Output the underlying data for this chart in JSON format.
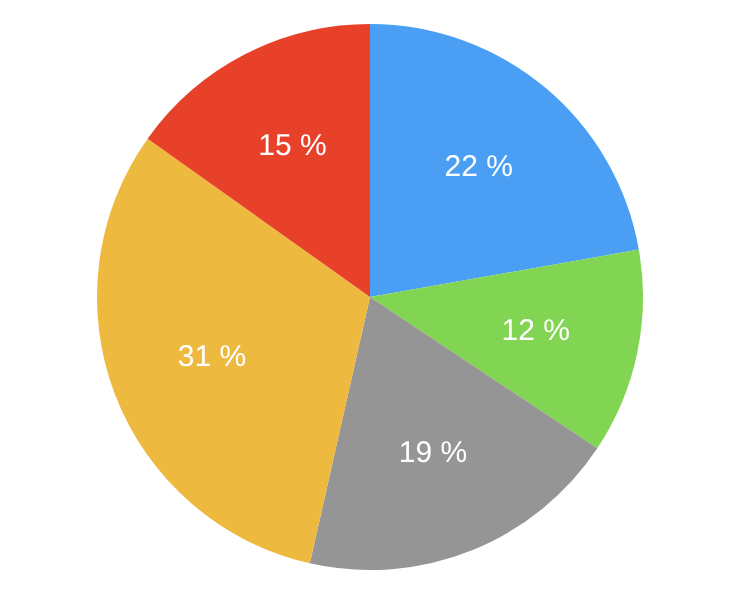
{
  "chart_data": {
    "type": "pie",
    "categories": [
      null,
      null,
      null,
      null,
      null
    ],
    "values": [
      22,
      12,
      19,
      31,
      15
    ],
    "colors": [
      "#4a9ff5",
      "#82d552",
      "#959595",
      "#eeb93f",
      "#e8412a"
    ],
    "value_labels": [
      "22 %",
      "12 %",
      "19 %",
      "31 %",
      "15 %"
    ]
  }
}
